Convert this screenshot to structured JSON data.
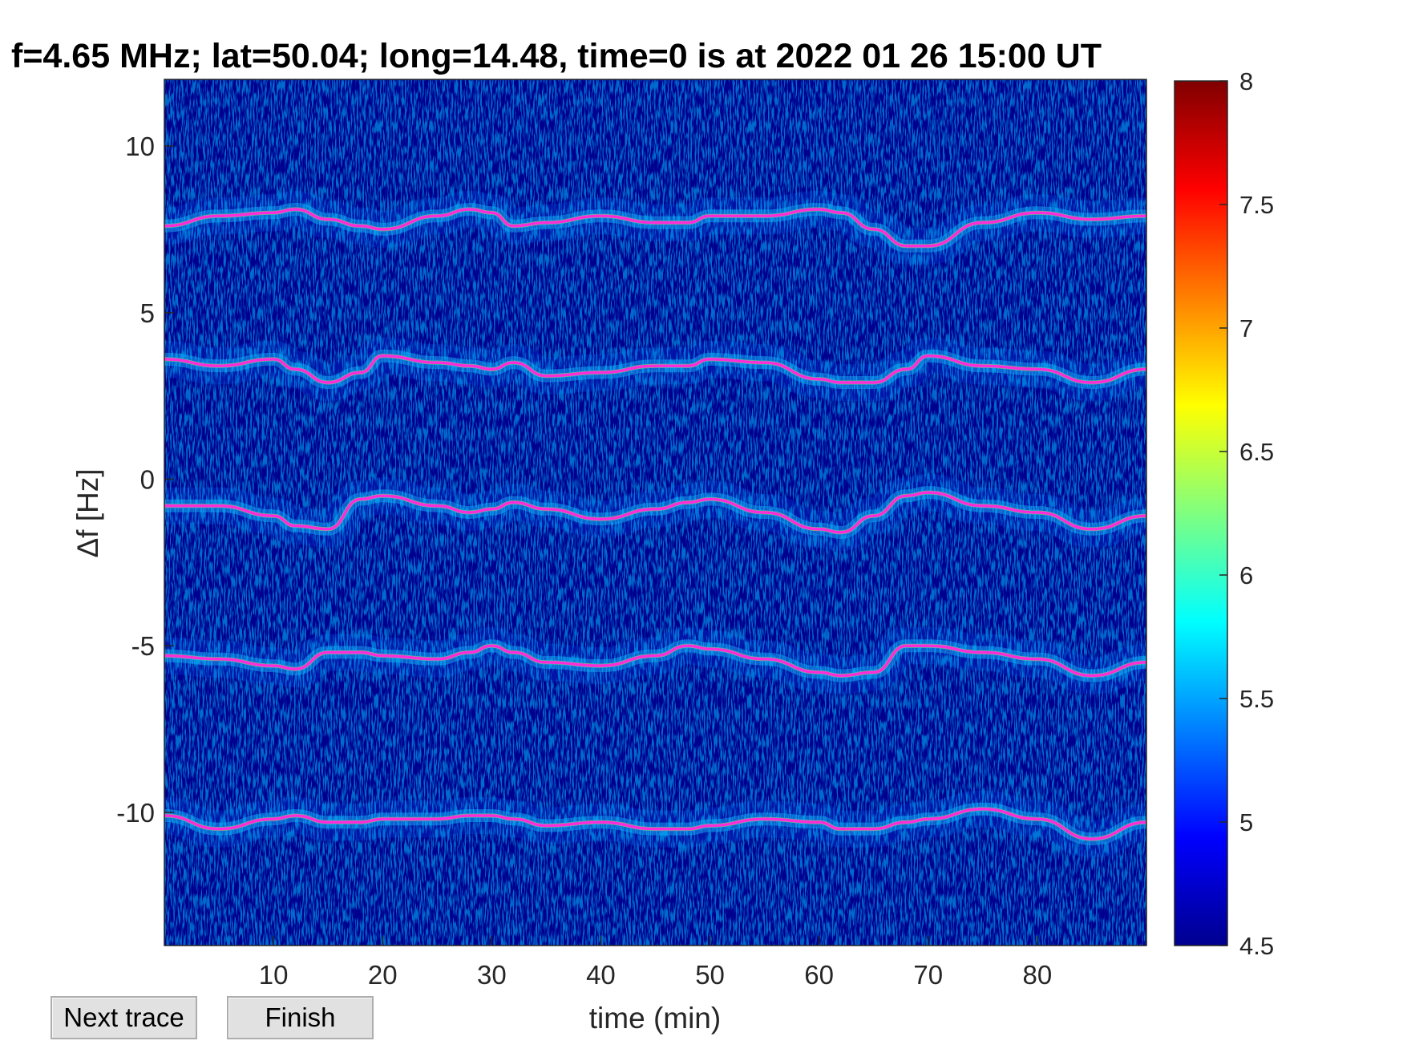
{
  "figure": {
    "title": "f=4.65 MHz;  lat=50.04; long=14.48, time=0 is at 2022 01 26 15:00 UT"
  },
  "buttons": {
    "next_trace": "Next trace",
    "finish": "Finish"
  },
  "colors": {
    "background": "#00008F",
    "trace": "#FF2BD8",
    "trace_alt": "#000000"
  },
  "colormap": "jet",
  "chart_data": {
    "type": "heatmap",
    "title": "f=4.65 MHz;  lat=50.04; long=14.48, time=0 is at 2022 01 26 15:00 UT",
    "xlabel": "time (min)",
    "ylabel": "Δf [Hz]",
    "xlim": [
      0,
      90
    ],
    "ylim": [
      -14,
      12
    ],
    "xticks": [
      10,
      20,
      30,
      40,
      50,
      60,
      70,
      80
    ],
    "xtick_labels": [
      "10",
      "20",
      "30",
      "40",
      "50",
      "60",
      "70",
      "80"
    ],
    "yticks": [
      10,
      5,
      0,
      -5,
      -10
    ],
    "ytick_labels": [
      "10",
      "5",
      "0",
      "-5",
      "-10"
    ],
    "colorbar": {
      "clim": [
        4.5,
        8
      ],
      "ticks": [
        8,
        7.5,
        7,
        6.5,
        6,
        5.5,
        5,
        4.5
      ],
      "tick_labels": [
        "8",
        "7.5",
        "7",
        "6.5",
        "6",
        "5.5",
        "5",
        "4.5"
      ]
    },
    "grid": false,
    "trace_x": [
      0,
      5,
      10,
      12,
      15,
      18,
      20,
      25,
      28,
      30,
      32,
      35,
      40,
      45,
      48,
      50,
      55,
      60,
      62,
      65,
      68,
      70,
      75,
      80,
      85,
      90
    ],
    "series": [
      {
        "values": [
          7.6,
          7.9,
          8.0,
          8.1,
          7.8,
          7.6,
          7.5,
          7.9,
          8.1,
          8.0,
          7.6,
          7.7,
          7.9,
          7.7,
          7.7,
          7.9,
          7.9,
          8.1,
          8.0,
          7.5,
          7.0,
          7.0,
          7.7,
          8.0,
          7.8,
          7.9
        ]
      },
      {
        "values": [
          3.6,
          3.4,
          3.6,
          3.3,
          2.9,
          3.2,
          3.7,
          3.5,
          3.4,
          3.3,
          3.5,
          3.1,
          3.2,
          3.4,
          3.4,
          3.6,
          3.5,
          3.0,
          2.9,
          2.9,
          3.3,
          3.7,
          3.4,
          3.3,
          2.9,
          3.3
        ]
      },
      {
        "values": [
          -0.8,
          -0.8,
          -1.1,
          -1.4,
          -1.5,
          -0.6,
          -0.5,
          -0.8,
          -1.0,
          -0.9,
          -0.7,
          -0.9,
          -1.2,
          -0.9,
          -0.7,
          -0.6,
          -1.0,
          -1.5,
          -1.6,
          -1.1,
          -0.5,
          -0.4,
          -0.8,
          -1.0,
          -1.5,
          -1.1
        ]
      },
      {
        "values": [
          -5.3,
          -5.4,
          -5.6,
          -5.7,
          -5.2,
          -5.2,
          -5.3,
          -5.4,
          -5.2,
          -5.0,
          -5.2,
          -5.5,
          -5.6,
          -5.3,
          -5.0,
          -5.1,
          -5.4,
          -5.8,
          -5.9,
          -5.8,
          -5.0,
          -5.0,
          -5.2,
          -5.4,
          -5.9,
          -5.5
        ]
      },
      {
        "values": [
          -10.1,
          -10.5,
          -10.2,
          -10.1,
          -10.3,
          -10.3,
          -10.2,
          -10.2,
          -10.1,
          -10.1,
          -10.2,
          -10.4,
          -10.3,
          -10.5,
          -10.5,
          -10.4,
          -10.2,
          -10.3,
          -10.5,
          -10.5,
          -10.3,
          -10.2,
          -9.9,
          -10.2,
          -10.8,
          -10.3
        ]
      }
    ]
  }
}
